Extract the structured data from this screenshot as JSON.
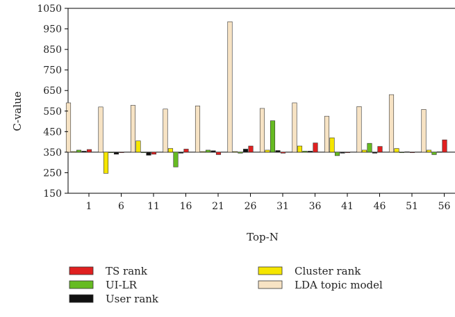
{
  "chart_data": {
    "type": "bar",
    "baseline": 350,
    "xlabel": "Top-N",
    "ylabel": "C-value",
    "ylim": [
      150,
      1050
    ],
    "yticks": [
      150,
      250,
      350,
      450,
      550,
      650,
      750,
      850,
      950,
      1050
    ],
    "categories": [
      "1",
      "6",
      "11",
      "16",
      "21",
      "26",
      "31",
      "36",
      "41",
      "46",
      "51",
      "56"
    ],
    "grid": false,
    "legend_position": "bottom",
    "series": [
      {
        "name": "LDA topic model",
        "color": "#f7e3c4",
        "values": [
          590,
          570,
          578,
          560,
          575,
          985,
          563,
          590,
          525,
          572,
          630,
          558
        ]
      },
      {
        "name": "Cluster rank",
        "color": "#f5e600",
        "values": [
          353,
          247,
          405,
          368,
          353,
          353,
          360,
          380,
          420,
          360,
          368,
          360
        ]
      },
      {
        "name": "UI-LR",
        "color": "#66bb22",
        "values": [
          360,
          350,
          350,
          278,
          360,
          345,
          503,
          355,
          333,
          393,
          350,
          338
        ]
      },
      {
        "name": "User rank",
        "color": "#111111",
        "values": [
          355,
          340,
          335,
          345,
          357,
          365,
          358,
          355,
          345,
          345,
          352,
          352
        ]
      },
      {
        "name": "TS rank",
        "color": "#e02020",
        "values": [
          363,
          350,
          340,
          365,
          338,
          380,
          345,
          395,
          350,
          378,
          350,
          410
        ]
      }
    ],
    "legend_order": [
      "TS rank",
      "UI-LR",
      "User rank",
      "Cluster rank",
      "LDA topic model"
    ]
  }
}
